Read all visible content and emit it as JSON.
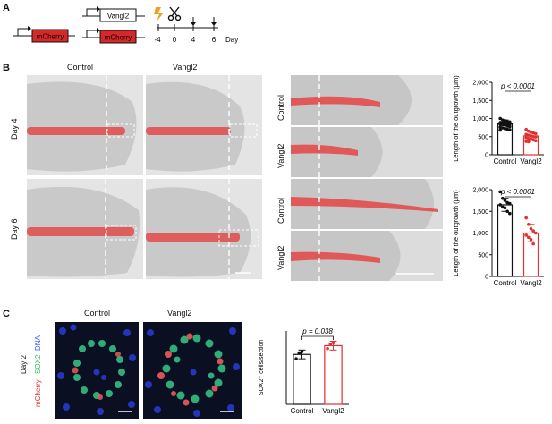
{
  "panels": {
    "a": {
      "letter": "A",
      "constructs": {
        "upper": "Vangl2",
        "lower_left": "mCherry",
        "lower_right": "mCherry"
      },
      "timeline": {
        "ticks": [
          "-4",
          "0",
          "4",
          "6"
        ],
        "unit": "Day"
      }
    },
    "b": {
      "letter": "B",
      "col_left": "Control",
      "col_right": "Vangl2",
      "row_top": "Day 4",
      "row_bottom": "Day 6",
      "zoom_labels": [
        "Control",
        "Vangl2",
        "Control",
        "Vangl2"
      ]
    },
    "c": {
      "letter": "C",
      "col_left": "Control",
      "col_right": "Vangl2",
      "row_label": "Day 2",
      "channels": {
        "dna": "DNA",
        "sox2": "SOX2",
        "mcherry": "mCherry"
      }
    }
  },
  "colors": {
    "control": "#111111",
    "vangl2": "#e03030",
    "mcherry": "#d62828",
    "bg": "#ffffff"
  },
  "chart_data": [
    {
      "type": "bar",
      "categories": [
        "Control",
        "Vangl2"
      ],
      "values": [
        850,
        520
      ],
      "errors": [
        110,
        120
      ],
      "points": [
        [
          1000,
          960,
          940,
          920,
          905,
          890,
          880,
          870,
          860,
          850,
          840,
          830,
          820,
          800,
          780,
          760,
          740,
          720,
          700,
          690,
          680
        ],
        [
          700,
          650,
          620,
          600,
          580,
          560,
          540,
          520,
          500,
          490,
          470,
          450,
          430,
          410,
          390,
          370,
          360
        ]
      ],
      "ylabel": "Length of the outgrowth (μm)",
      "yticks": [
        "0",
        "500",
        "1,000",
        "1,500",
        "2,000"
      ],
      "ylim": [
        0,
        2000
      ],
      "annotation": "p < 0.0001"
    },
    {
      "type": "bar",
      "categories": [
        "Control",
        "Vangl2"
      ],
      "values": [
        1650,
        1000
      ],
      "errors": [
        150,
        200
      ],
      "points": [
        [
          1950,
          1800,
          1750,
          1700,
          1680,
          1650,
          1600,
          1580,
          1500,
          1450
        ],
        [
          1350,
          1200,
          1100,
          1050,
          1000,
          950,
          900,
          850,
          750
        ]
      ],
      "ylabel": "Length of the outgrowth (μm)",
      "yticks": [
        "0",
        "500",
        "1,000",
        "1,500",
        "2,000"
      ],
      "ylim": [
        0,
        2000
      ],
      "annotation": "p < 0.0001"
    },
    {
      "type": "bar",
      "categories": [
        "Control",
        "Vangl2"
      ],
      "values": [
        34,
        40
      ],
      "errors": [
        3,
        3
      ],
      "points": [
        [
          31,
          35,
          36
        ],
        [
          38,
          41,
          42
        ]
      ],
      "ylabel": "SOX2⁺ cells/section",
      "yticks": [],
      "ylim": [
        0,
        50
      ],
      "annotation": "p = 0.038"
    }
  ]
}
